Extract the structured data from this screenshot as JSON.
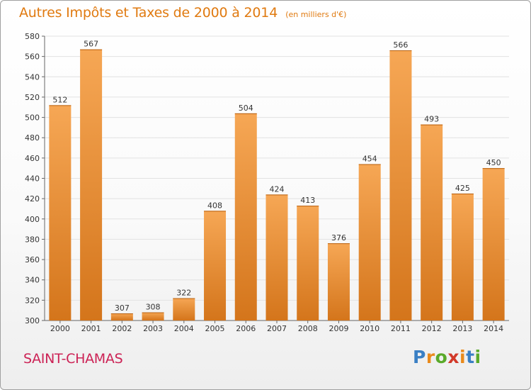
{
  "chart_data": {
    "type": "bar",
    "title": "Autres Impôts et Taxes de 2000 à 2014",
    "unit": "(en milliers d'€)",
    "subject": "SAINT-CHAMAS",
    "categories": [
      "2000",
      "2001",
      "2002",
      "2003",
      "2004",
      "2005",
      "2006",
      "2007",
      "2008",
      "2009",
      "2010",
      "2011",
      "2012",
      "2013",
      "2014"
    ],
    "values": [
      512,
      567,
      307,
      308,
      322,
      408,
      504,
      424,
      413,
      376,
      454,
      566,
      493,
      425,
      450
    ],
    "yticks": [
      300,
      320,
      340,
      360,
      380,
      400,
      420,
      440,
      460,
      480,
      500,
      520,
      540,
      560,
      580
    ],
    "ylim": [
      300,
      580
    ],
    "grid": true,
    "legend": "none",
    "colors": {
      "bar_light": "#f6a755",
      "bar_dark": "#d4751b",
      "title": "#e07a10",
      "subject": "#cc2255",
      "grid": "#e2e2e2"
    }
  },
  "brand": {
    "name": "Proxiti",
    "letters": [
      {
        "ch": "P",
        "color": "#3a7fc4"
      },
      {
        "ch": "r",
        "color": "#e98a1c"
      },
      {
        "ch": "o",
        "color": "#5aaa2a"
      },
      {
        "ch": "x",
        "color": "#d23a2a"
      },
      {
        "ch": "i",
        "color": "#e98a1c"
      },
      {
        "ch": "t",
        "color": "#3a7fc4"
      },
      {
        "ch": "i",
        "color": "#5aaa2a"
      }
    ]
  }
}
